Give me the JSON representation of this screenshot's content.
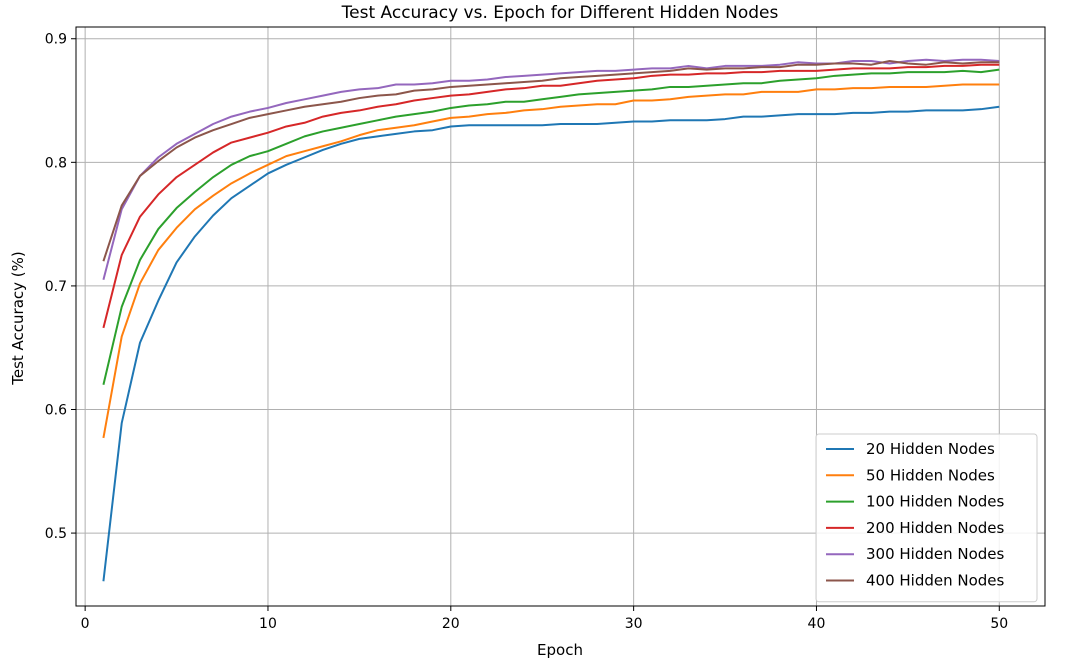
{
  "chart_data": {
    "type": "line",
    "title": "Test Accuracy vs. Epoch for Different Hidden Nodes",
    "xlabel": "Epoch",
    "ylabel": "Test Accuracy (%)",
    "xlim": [
      -0.5,
      52.5
    ],
    "ylim": [
      0.441,
      0.9095
    ],
    "xticks": [
      0,
      10,
      20,
      30,
      40,
      50
    ],
    "yticks": [
      0.5,
      0.6,
      0.7,
      0.8,
      0.9
    ],
    "xtick_labels": [
      "0",
      "10",
      "20",
      "30",
      "40",
      "50"
    ],
    "ytick_labels": [
      "0.5",
      "0.6",
      "0.7",
      "0.8",
      "0.9"
    ],
    "grid": true,
    "legend_position": "lower-right",
    "x": [
      1,
      2,
      3,
      4,
      5,
      6,
      7,
      8,
      9,
      10,
      11,
      12,
      13,
      14,
      15,
      16,
      17,
      18,
      19,
      20,
      21,
      22,
      23,
      24,
      25,
      26,
      27,
      28,
      29,
      30,
      31,
      32,
      33,
      34,
      35,
      36,
      37,
      38,
      39,
      40,
      41,
      42,
      43,
      44,
      45,
      46,
      47,
      48,
      49,
      50
    ],
    "series": [
      {
        "name": "20 Hidden Nodes",
        "color": "#1f77b4",
        "values": [
          0.461,
          0.589,
          0.654,
          0.688,
          0.719,
          0.74,
          0.757,
          0.771,
          0.781,
          0.791,
          0.798,
          0.804,
          0.81,
          0.815,
          0.819,
          0.821,
          0.823,
          0.825,
          0.826,
          0.829,
          0.83,
          0.83,
          0.83,
          0.83,
          0.83,
          0.831,
          0.831,
          0.831,
          0.832,
          0.833,
          0.833,
          0.834,
          0.834,
          0.834,
          0.835,
          0.837,
          0.837,
          0.838,
          0.839,
          0.839,
          0.839,
          0.84,
          0.84,
          0.841,
          0.841,
          0.842,
          0.842,
          0.842,
          0.843,
          0.845
        ]
      },
      {
        "name": "50 Hidden Nodes",
        "color": "#ff7f0e",
        "values": [
          0.577,
          0.659,
          0.702,
          0.729,
          0.747,
          0.762,
          0.773,
          0.783,
          0.791,
          0.798,
          0.805,
          0.809,
          0.813,
          0.817,
          0.822,
          0.826,
          0.828,
          0.83,
          0.833,
          0.836,
          0.837,
          0.839,
          0.84,
          0.842,
          0.843,
          0.845,
          0.846,
          0.847,
          0.847,
          0.85,
          0.85,
          0.851,
          0.853,
          0.854,
          0.855,
          0.855,
          0.857,
          0.857,
          0.857,
          0.859,
          0.859,
          0.86,
          0.86,
          0.861,
          0.861,
          0.861,
          0.862,
          0.863,
          0.863,
          0.863
        ]
      },
      {
        "name": "100 Hidden Nodes",
        "color": "#2ca02c",
        "values": [
          0.62,
          0.683,
          0.721,
          0.746,
          0.763,
          0.776,
          0.788,
          0.798,
          0.805,
          0.809,
          0.815,
          0.821,
          0.825,
          0.828,
          0.831,
          0.834,
          0.837,
          0.839,
          0.841,
          0.844,
          0.846,
          0.847,
          0.849,
          0.849,
          0.851,
          0.853,
          0.855,
          0.856,
          0.857,
          0.858,
          0.859,
          0.861,
          0.861,
          0.862,
          0.863,
          0.864,
          0.864,
          0.866,
          0.867,
          0.868,
          0.87,
          0.871,
          0.872,
          0.872,
          0.873,
          0.873,
          0.873,
          0.874,
          0.873,
          0.875
        ]
      },
      {
        "name": "200 Hidden Nodes",
        "color": "#d62728",
        "values": [
          0.666,
          0.725,
          0.756,
          0.774,
          0.788,
          0.798,
          0.808,
          0.816,
          0.82,
          0.824,
          0.829,
          0.832,
          0.837,
          0.84,
          0.842,
          0.845,
          0.847,
          0.85,
          0.852,
          0.854,
          0.855,
          0.857,
          0.859,
          0.86,
          0.862,
          0.862,
          0.864,
          0.866,
          0.867,
          0.868,
          0.87,
          0.871,
          0.871,
          0.872,
          0.872,
          0.873,
          0.873,
          0.874,
          0.874,
          0.874,
          0.875,
          0.876,
          0.876,
          0.876,
          0.877,
          0.877,
          0.878,
          0.878,
          0.879,
          0.879
        ]
      },
      {
        "name": "300 Hidden Nodes",
        "color": "#9467bd",
        "values": [
          0.705,
          0.762,
          0.789,
          0.804,
          0.815,
          0.823,
          0.831,
          0.837,
          0.841,
          0.844,
          0.848,
          0.851,
          0.854,
          0.857,
          0.859,
          0.86,
          0.863,
          0.863,
          0.864,
          0.866,
          0.866,
          0.867,
          0.869,
          0.87,
          0.871,
          0.872,
          0.873,
          0.874,
          0.874,
          0.875,
          0.876,
          0.876,
          0.878,
          0.876,
          0.878,
          0.878,
          0.878,
          0.879,
          0.881,
          0.88,
          0.88,
          0.882,
          0.882,
          0.88,
          0.882,
          0.883,
          0.882,
          0.883,
          0.883,
          0.882
        ]
      },
      {
        "name": "400 Hidden Nodes",
        "color": "#8c564b",
        "values": [
          0.72,
          0.765,
          0.789,
          0.801,
          0.812,
          0.82,
          0.826,
          0.831,
          0.836,
          0.839,
          0.842,
          0.845,
          0.847,
          0.849,
          0.852,
          0.854,
          0.855,
          0.858,
          0.859,
          0.861,
          0.862,
          0.863,
          0.864,
          0.865,
          0.866,
          0.868,
          0.869,
          0.87,
          0.871,
          0.872,
          0.873,
          0.874,
          0.876,
          0.875,
          0.876,
          0.876,
          0.877,
          0.877,
          0.879,
          0.879,
          0.88,
          0.88,
          0.879,
          0.882,
          0.88,
          0.879,
          0.881,
          0.88,
          0.881,
          0.881
        ]
      }
    ]
  }
}
